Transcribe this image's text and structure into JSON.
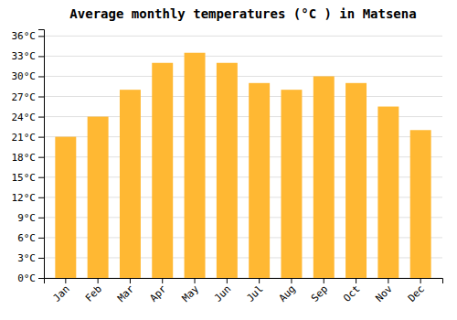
{
  "chart_data": {
    "type": "bar",
    "title": "Average monthly temperatures (°C ) in Matsena",
    "categories": [
      "Jan",
      "Feb",
      "Mar",
      "Apr",
      "May",
      "Jun",
      "Jul",
      "Aug",
      "Sep",
      "Oct",
      "Nov",
      "Dec"
    ],
    "values": [
      21,
      24,
      28,
      32,
      33.5,
      32,
      29,
      28,
      30,
      29,
      25.5,
      22
    ],
    "color": "#FFB833",
    "ylim": [
      0,
      37
    ],
    "yticks": [
      {
        "value": 0,
        "label": "0°C"
      },
      {
        "value": 3,
        "label": "3°C"
      },
      {
        "value": 6,
        "label": "6°C"
      },
      {
        "value": 9,
        "label": "9°C"
      },
      {
        "value": 12,
        "label": "12°C"
      },
      {
        "value": 15,
        "label": "15°C"
      },
      {
        "value": 18,
        "label": "18°C"
      },
      {
        "value": 21,
        "label": "21°C"
      },
      {
        "value": 24,
        "label": "24°C"
      },
      {
        "value": 27,
        "label": "27°C"
      },
      {
        "value": 30,
        "label": "30°C"
      },
      {
        "value": 33,
        "label": "33°C"
      },
      {
        "value": 36,
        "label": "36°C"
      }
    ],
    "grid": true
  }
}
